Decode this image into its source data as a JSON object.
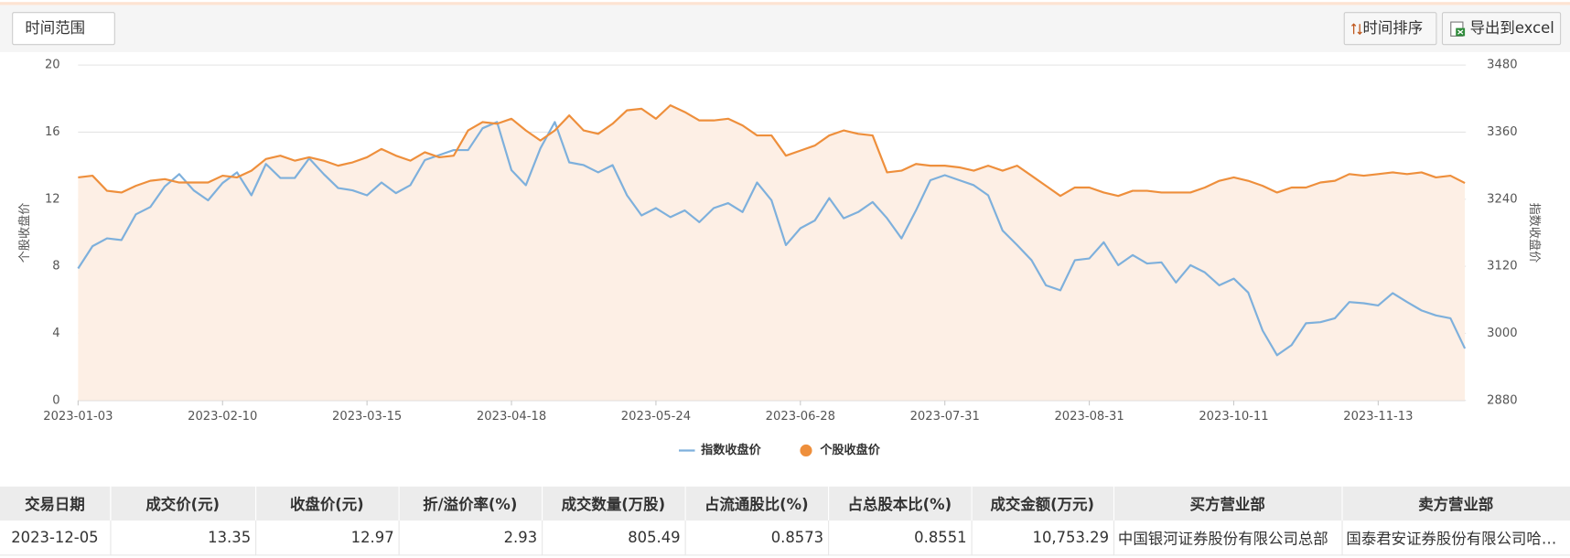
{
  "toolbar": {
    "range_button": "时间范围",
    "sort_button": "时间排序",
    "export_button": "导出到excel"
  },
  "chart_data": {
    "type": "line",
    "categories": [
      "2023-01-03",
      null,
      null,
      null,
      null,
      null,
      null,
      null,
      null,
      null,
      "2023-02-10",
      null,
      null,
      null,
      null,
      null,
      null,
      null,
      null,
      null,
      "2023-03-15",
      null,
      null,
      null,
      null,
      null,
      null,
      null,
      null,
      null,
      "2023-04-18",
      null,
      null,
      null,
      null,
      null,
      null,
      null,
      null,
      null,
      "2023-05-24",
      null,
      null,
      null,
      null,
      null,
      null,
      null,
      null,
      null,
      "2023-06-28",
      null,
      null,
      null,
      null,
      null,
      null,
      null,
      null,
      null,
      "2023-07-31",
      null,
      null,
      null,
      null,
      null,
      null,
      null,
      null,
      null,
      "2023-08-31",
      null,
      null,
      null,
      null,
      null,
      null,
      null,
      null,
      null,
      "2023-10-11",
      null,
      null,
      null,
      null,
      null,
      null,
      null,
      null,
      null,
      "2023-11-13",
      null,
      null,
      null,
      null,
      null,
      null
    ],
    "series": [
      {
        "name": "指数收盘价",
        "color": "#7eb0dc",
        "axis": "y2",
        "marker": "line",
        "values": [
          3116,
          3156,
          3170,
          3167,
          3213,
          3226,
          3263,
          3285,
          3256,
          3238,
          3269,
          3288,
          3247,
          3303,
          3278,
          3278,
          3313,
          3285,
          3260,
          3256,
          3247,
          3270,
          3251,
          3265,
          3310,
          3319,
          3328,
          3328,
          3367,
          3378,
          3292,
          3265,
          3331,
          3378,
          3306,
          3301,
          3288,
          3301,
          3247,
          3211,
          3224,
          3208,
          3220,
          3199,
          3224,
          3233,
          3217,
          3270,
          3238,
          3158,
          3188,
          3202,
          3242,
          3206,
          3217,
          3235,
          3206,
          3170,
          3220,
          3274,
          3283,
          3274,
          3265,
          3247,
          3184,
          3158,
          3131,
          3086,
          3077,
          3131,
          3134,
          3163,
          3122,
          3140,
          3125,
          3127,
          3091,
          3122,
          3109,
          3086,
          3098,
          3073,
          3005,
          2961,
          2979,
          3018,
          3020,
          3027,
          3056,
          3054,
          3050,
          3072,
          3056,
          3041,
          3032,
          3027,
          2973
        ]
      },
      {
        "name": "个股收盘价",
        "color": "#ee8f3c",
        "area": true,
        "area_color": "#fdefe5",
        "marker": "circle",
        "values": [
          13.3,
          13.4,
          12.5,
          12.4,
          12.8,
          13.1,
          13.2,
          13.0,
          13.0,
          13.0,
          13.4,
          13.3,
          13.7,
          14.4,
          14.6,
          14.3,
          14.5,
          14.3,
          14.0,
          14.2,
          14.5,
          15.0,
          14.6,
          14.3,
          14.8,
          14.5,
          14.6,
          16.1,
          16.6,
          16.5,
          16.8,
          16.1,
          15.5,
          16.1,
          17.0,
          16.1,
          15.9,
          16.5,
          17.3,
          17.4,
          16.8,
          17.6,
          17.2,
          16.7,
          16.7,
          16.8,
          16.4,
          15.8,
          15.8,
          14.6,
          14.9,
          15.2,
          15.8,
          16.1,
          15.9,
          15.8,
          13.6,
          13.7,
          14.1,
          14.0,
          14.0,
          13.9,
          13.7,
          14.0,
          13.7,
          14.0,
          13.4,
          12.8,
          12.2,
          12.7,
          12.7,
          12.4,
          12.2,
          12.5,
          12.5,
          12.4,
          12.4,
          12.4,
          12.7,
          13.1,
          13.3,
          13.1,
          12.8,
          12.4,
          12.7,
          12.7,
          13.0,
          13.1,
          13.5,
          13.4,
          13.5,
          13.6,
          13.5,
          13.6,
          13.3,
          13.4,
          12.97
        ]
      }
    ],
    "ylabel": "个股收盘价",
    "y2label": "指数收盘价",
    "ylim": [
      0,
      20
    ],
    "yticks": [
      0,
      4,
      8,
      12,
      16,
      20
    ],
    "y2lim": [
      2880,
      3480
    ],
    "y2ticks": [
      2880,
      3000,
      3120,
      3240,
      3360,
      3480
    ],
    "grid": true,
    "legend": "bottom"
  },
  "table": {
    "columns": [
      "交易日期",
      "成交价(元)",
      "收盘价(元)",
      "折/溢价率(%)",
      "成交数量(万股)",
      "占流通股比(%)",
      "占总股本比(%)",
      "成交金额(万元)",
      "买方营业部",
      "卖方营业部"
    ],
    "rows": [
      [
        "2023-12-05",
        "13.35",
        "12.97",
        "2.93",
        "805.49",
        "0.8573",
        "0.8551",
        "10,753.29",
        "中国银河证券股份有限公司总部",
        "国泰君安证券股份有限公司哈…"
      ]
    ]
  }
}
